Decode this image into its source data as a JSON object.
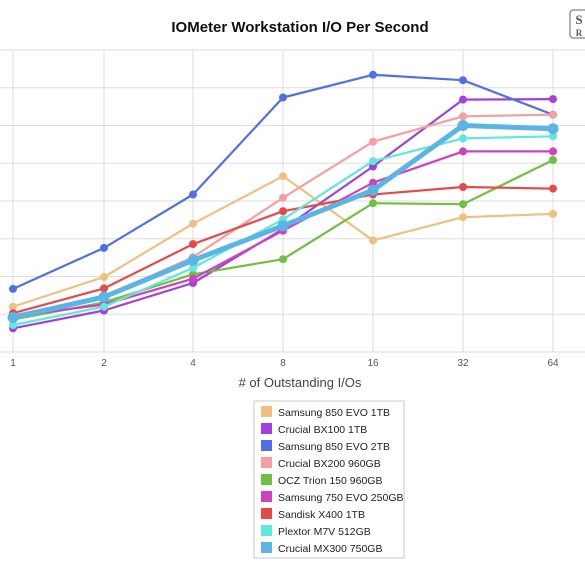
{
  "chart_data": {
    "type": "line",
    "title": "IOMeter Workstation I/O Per Second",
    "xlabel": "# of Outstanding I/Os",
    "ylabel": "",
    "categories": [
      "1",
      "2",
      "4",
      "8",
      "16",
      "32",
      "64"
    ],
    "grid": true,
    "legend_position": "bottom",
    "series": [
      {
        "name": "Samsung 850 EVO 1TB",
        "color": "#f0c080",
        "values": [
          4200,
          6950,
          11900,
          16300,
          10350,
          12500,
          12800
        ]
      },
      {
        "name": "Crucial BX100 1TB",
        "color": "#a040e0",
        "values": [
          2200,
          3850,
          6400,
          11400,
          17200,
          23400,
          23450
        ]
      },
      {
        "name": "Samsung 850 EVO 2TB",
        "color": "#5070e8",
        "values": [
          5850,
          9650,
          14600,
          23600,
          25700,
          25200,
          22000
        ]
      },
      {
        "name": "Crucial BX200 960GB",
        "color": "#f4a0a0",
        "values": [
          3400,
          5100,
          8800,
          14300,
          19500,
          21850,
          22000
        ]
      },
      {
        "name": "OCZ Trion 150 960GB",
        "color": "#70c040",
        "values": [
          3000,
          4600,
          7200,
          8600,
          13800,
          13700,
          17800
        ]
      },
      {
        "name": "Samsung 750 EVO 250GB",
        "color": "#d040c0",
        "values": [
          3300,
          4400,
          6800,
          11250,
          15700,
          18600,
          18600
        ]
      },
      {
        "name": "Sandisk X400 1TB",
        "color": "#e84848",
        "values": [
          3600,
          5900,
          10000,
          13050,
          14600,
          15300,
          15150
        ]
      },
      {
        "name": "Plextor M7V 512GB",
        "color": "#60e8d8",
        "values": [
          2500,
          4200,
          7800,
          12300,
          17700,
          19800,
          20000
        ]
      },
      {
        "name": "Crucial MX300 750GB",
        "color": "#5ab4e6",
        "values": [
          3200,
          5100,
          8500,
          11700,
          15000,
          21000,
          20700
        ]
      }
    ]
  }
}
